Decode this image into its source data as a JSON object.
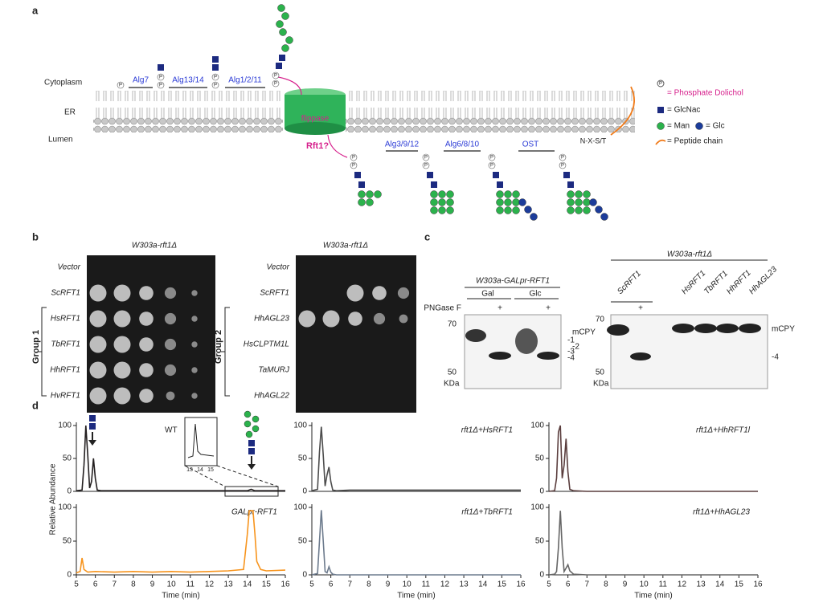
{
  "panel_a": {
    "letter": "a",
    "compartments": [
      "Cytoplasm",
      "ER",
      "Lumen"
    ],
    "phosphate_symbol": "P",
    "enzymes": [
      "Alg7",
      "Alg13/14",
      "Alg1/2/11",
      "Alg3/9/12",
      "Alg6/8/10",
      "OST"
    ],
    "flippase": "flippase",
    "rft1": "Rft1?",
    "motif": "N-X-S/T",
    "legend": [
      "= Phosphate Dolichol",
      "= GlcNac",
      "= Man",
      "= Glc",
      "= Peptide chain"
    ]
  },
  "panel_b": {
    "letter": "b",
    "titles": [
      "W303a-rft1Δ",
      "W303a-rft1Δ"
    ],
    "left_strains": [
      "Vector",
      "ScRFT1",
      "HsRFT1",
      "TbRFT1",
      "HhRFT1",
      "HvRFT1"
    ],
    "right_strains": [
      "Vector",
      "ScRFT1",
      "HhAGL23",
      "HsCLPTM1L",
      "TaMURJ",
      "HhAGL22"
    ],
    "groups": [
      "Group 1",
      "Group 2"
    ]
  },
  "panel_c": {
    "letter": "c",
    "left_title": "W303a-GALpr-RFT1",
    "pngase": "PNGase F",
    "media": [
      "Gal",
      "Glc"
    ],
    "plus": "+",
    "markers": [
      "70",
      "50"
    ],
    "unit": "KDa",
    "bands": [
      "mCPY",
      "-1",
      "-2",
      "-3",
      "-4"
    ],
    "right_title": "W303a-rft1Δ",
    "right_lanes": [
      "ScRFT1",
      "HsRFT1",
      "TbRFT1",
      "HhRFT1",
      "HhAGL23"
    ]
  },
  "panel_d": {
    "letter": "d",
    "y_label": "Relative Abundance",
    "inset_ticks": [
      "13",
      "14",
      "15"
    ]
  },
  "chart_data": [
    {
      "type": "line",
      "title": "WT",
      "color": "#231f20",
      "xlim": [
        5,
        16
      ],
      "ylim": [
        0,
        100
      ],
      "yticks": [
        0,
        50,
        100
      ],
      "x": [
        5,
        5.3,
        5.4,
        5.5,
        5.6,
        5.7,
        5.8,
        5.9,
        6.0,
        6.1,
        6.3,
        7,
        8,
        9,
        10,
        11,
        12,
        13,
        14,
        14.2,
        14.4,
        15,
        16
      ],
      "values": [
        1,
        2,
        40,
        100,
        55,
        5,
        15,
        50,
        20,
        2,
        1,
        1,
        1,
        1,
        1,
        1,
        1,
        1,
        1,
        3,
        1,
        1,
        1
      ]
    },
    {
      "type": "line",
      "title": "GALpr-RFT1",
      "color": "#f7941d",
      "xlim": [
        5,
        16
      ],
      "ylim": [
        0,
        100
      ],
      "yticks": [
        0,
        50,
        100
      ],
      "xticks": [
        5,
        6,
        7,
        8,
        9,
        10,
        11,
        12,
        13,
        14,
        15,
        16
      ],
      "x_label": "Time (min)",
      "x": [
        5,
        5.2,
        5.3,
        5.4,
        5.6,
        6,
        7,
        8,
        9,
        10,
        11,
        12,
        13,
        13.8,
        14,
        14.1,
        14.3,
        14.4,
        14.5,
        14.7,
        15,
        16
      ],
      "values": [
        3,
        5,
        25,
        8,
        4,
        5,
        4,
        5,
        4,
        5,
        4,
        5,
        6,
        8,
        60,
        95,
        95,
        60,
        20,
        8,
        6,
        7
      ]
    },
    {
      "type": "line",
      "title": "rft1Δ+HsRFT1",
      "color": "#4d4d4d",
      "xlim": [
        5,
        16
      ],
      "ylim": [
        0,
        100
      ],
      "yticks": [
        0,
        50,
        100
      ],
      "x": [
        5,
        5.3,
        5.4,
        5.5,
        5.6,
        5.7,
        5.8,
        5.9,
        6.0,
        6.1,
        6.3,
        7,
        8,
        9,
        10,
        11,
        12,
        13,
        14,
        15,
        16
      ],
      "values": [
        1,
        3,
        60,
        98,
        55,
        8,
        25,
        37,
        15,
        2,
        1,
        2,
        2,
        2,
        2,
        2,
        2,
        2,
        2,
        2,
        2
      ]
    },
    {
      "type": "line",
      "title": "rft1Δ+TbRFT1",
      "color": "#6d7b8d",
      "xlim": [
        5,
        16
      ],
      "ylim": [
        0,
        100
      ],
      "yticks": [
        0,
        50,
        100
      ],
      "xticks": [
        5,
        6,
        7,
        8,
        9,
        10,
        11,
        12,
        13,
        14,
        15,
        16
      ],
      "x_label": "Time (min)",
      "x": [
        5,
        5.3,
        5.4,
        5.5,
        5.6,
        5.7,
        5.8,
        5.9,
        6.0,
        6.1,
        6.3,
        7,
        8,
        9,
        10,
        11,
        12,
        13,
        14,
        15,
        16
      ],
      "values": [
        0,
        2,
        50,
        96,
        50,
        5,
        3,
        12,
        4,
        1,
        0,
        0,
        0,
        0,
        0,
        0,
        0,
        0,
        0,
        0,
        0
      ]
    },
    {
      "type": "line",
      "title": "rft1Δ+HhRFT1l",
      "color": "#5a3d3d",
      "xlim": [
        5,
        16
      ],
      "ylim": [
        0,
        100
      ],
      "yticks": [
        0,
        50,
        100
      ],
      "x": [
        5,
        5.3,
        5.4,
        5.5,
        5.6,
        5.7,
        5.8,
        5.9,
        6.0,
        6.1,
        6.3,
        7,
        8,
        9,
        10,
        11,
        12,
        13,
        14,
        15,
        16
      ],
      "values": [
        0,
        1,
        20,
        90,
        100,
        20,
        40,
        80,
        30,
        3,
        1,
        0,
        0,
        0,
        0,
        0,
        0,
        0,
        0,
        0,
        0
      ]
    },
    {
      "type": "line",
      "title": "rft1Δ+HhAGL23",
      "color": "#666666",
      "xlim": [
        5,
        16
      ],
      "ylim": [
        0,
        100
      ],
      "yticks": [
        0,
        50,
        100
      ],
      "xticks": [
        5,
        6,
        7,
        8,
        9,
        10,
        11,
        12,
        13,
        14,
        15,
        16
      ],
      "x_label": "Time (min)",
      "x": [
        5,
        5.3,
        5.4,
        5.5,
        5.6,
        5.7,
        5.8,
        5.9,
        6.0,
        6.1,
        6.3,
        7,
        8,
        9,
        10,
        11,
        12,
        13,
        14,
        15,
        16
      ],
      "values": [
        0,
        1,
        5,
        40,
        95,
        40,
        5,
        10,
        15,
        6,
        1,
        0,
        0,
        0,
        0,
        0,
        0,
        0,
        0,
        0,
        0
      ]
    }
  ]
}
